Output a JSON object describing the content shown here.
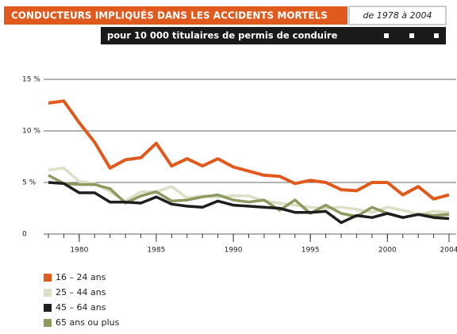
{
  "chart_data": {
    "type": "line",
    "title": "CONDUCTEURS IMPLIQUÉS DANS LES ACCIDENTS MORTELS",
    "period": "de 1978 à 2004",
    "subtitle": "pour 10 000 titulaires de permis de conduire",
    "x": [
      1978,
      1979,
      1980,
      1981,
      1982,
      1983,
      1984,
      1985,
      1986,
      1987,
      1988,
      1989,
      1990,
      1991,
      1992,
      1993,
      1994,
      1995,
      1996,
      1997,
      1998,
      1999,
      2000,
      2001,
      2002,
      2003,
      2004
    ],
    "xlim": [
      1978,
      2004
    ],
    "xticks": [
      1980,
      1985,
      1990,
      1995,
      2000,
      2004
    ],
    "ylim": [
      0,
      15
    ],
    "yticks": [
      {
        "value": 0,
        "label": "0"
      },
      {
        "value": 5,
        "label": "5 %"
      },
      {
        "value": 10,
        "label": "10 %"
      },
      {
        "value": 15,
        "label": "15 %"
      }
    ],
    "grid": true,
    "series": [
      {
        "name": "16 – 24 ans",
        "color": "#e05a1e",
        "values": [
          12.7,
          12.9,
          10.8,
          8.9,
          6.4,
          7.2,
          7.4,
          8.8,
          6.6,
          7.3,
          6.6,
          7.3,
          6.5,
          6.1,
          5.7,
          5.6,
          4.9,
          5.2,
          5.0,
          4.3,
          4.2,
          5.0,
          5.0,
          3.8,
          4.6,
          3.4,
          3.8
        ]
      },
      {
        "name": "25 – 44 ans",
        "color": "#dcdfc6",
        "values": [
          6.2,
          6.4,
          5.1,
          4.9,
          4.1,
          3.2,
          4.1,
          4.1,
          4.6,
          3.5,
          3.7,
          3.6,
          3.7,
          3.7,
          3.2,
          3.0,
          2.8,
          2.6,
          2.5,
          2.6,
          2.4,
          2.1,
          2.6,
          2.3,
          1.9,
          2.2,
          2.1
        ]
      },
      {
        "name": "45 – 64 ans",
        "color": "#1e1e1e",
        "values": [
          5.0,
          4.9,
          4.0,
          4.0,
          3.1,
          3.1,
          3.0,
          3.6,
          2.9,
          2.7,
          2.6,
          3.2,
          2.8,
          2.7,
          2.6,
          2.5,
          2.1,
          2.1,
          2.2,
          1.1,
          1.8,
          1.6,
          2.0,
          1.6,
          1.9,
          1.6,
          1.5
        ]
      },
      {
        "name": "65 ans ou plus",
        "color": "#8c9a60",
        "values": [
          5.7,
          4.9,
          4.8,
          4.8,
          4.4,
          3.0,
          3.7,
          4.1,
          3.2,
          3.3,
          3.6,
          3.8,
          3.3,
          3.1,
          3.3,
          2.3,
          3.3,
          2.0,
          2.8,
          2.0,
          1.7,
          2.6,
          2.0,
          1.6,
          1.9,
          1.8,
          1.9
        ]
      }
    ]
  }
}
